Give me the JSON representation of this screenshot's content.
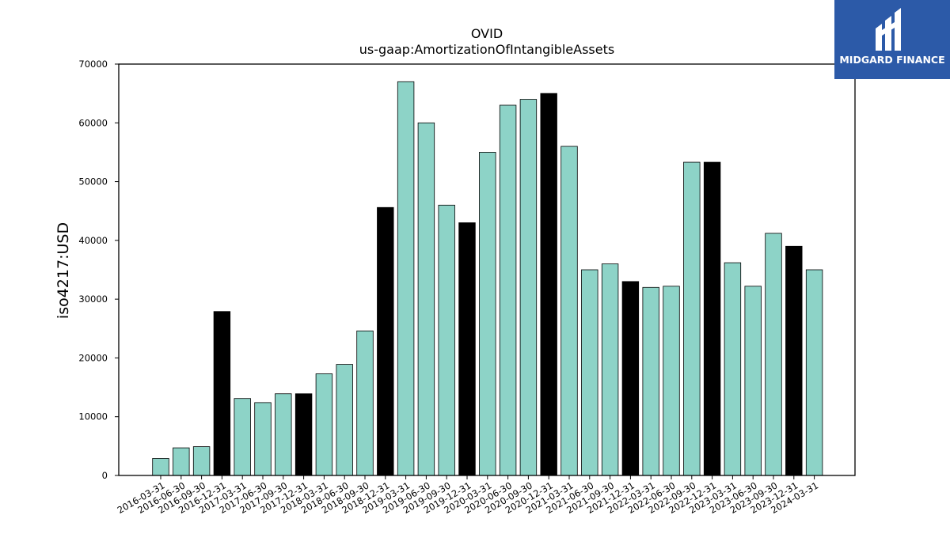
{
  "chart_data": {
    "type": "bar",
    "title": "OVID",
    "subtitle": "us-gaap:AmortizationOfIntangibleAssets",
    "xlabel": "",
    "ylabel": "iso4217:USD",
    "ylim": [
      0,
      70000
    ],
    "yticks": [
      0,
      10000,
      20000,
      30000,
      40000,
      50000,
      60000,
      70000
    ],
    "grid": false,
    "colors": {
      "quarter": "#8dd3c7",
      "year_end": "#000000",
      "edge": "#000000"
    },
    "categories": [
      "2016-03-31",
      "2016-06-30",
      "2016-09-30",
      "2016-12-31",
      "2017-03-31",
      "2017-06-30",
      "2017-09-30",
      "2017-12-31",
      "2018-03-31",
      "2018-06-30",
      "2018-09-30",
      "2018-12-31",
      "2019-03-31",
      "2019-06-30",
      "2019-09-30",
      "2019-12-31",
      "2020-03-31",
      "2020-06-30",
      "2020-09-30",
      "2020-12-31",
      "2021-03-31",
      "2021-06-30",
      "2021-09-30",
      "2021-12-31",
      "2022-03-31",
      "2022-06-30",
      "2022-09-30",
      "2022-12-31",
      "2023-03-31",
      "2023-06-30",
      "2023-09-30",
      "2023-12-31",
      "2024-03-31"
    ],
    "values": [
      2900,
      4700,
      4900,
      27900,
      13100,
      12400,
      13900,
      13900,
      17300,
      18900,
      24600,
      45600,
      67000,
      60000,
      46000,
      43000,
      55000,
      63000,
      64000,
      65000,
      56000,
      35000,
      36000,
      33000,
      32000,
      32200,
      53300,
      53300,
      36200,
      32200,
      41200,
      39000,
      35000
    ]
  },
  "logo": {
    "text": "MIDGARD FINANCE",
    "name": "midgard-finance-logo"
  }
}
